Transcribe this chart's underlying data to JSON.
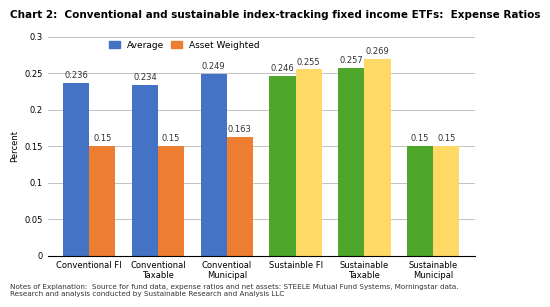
{
  "title": "Chart 2:  Conventional and sustainable index-tracking fixed income ETFs:  Expense Ratios",
  "categories": [
    "Conventional FI",
    "Conventional\nTaxable",
    "Conventioal\nMunicipal",
    "Sustainble FI",
    "Sustainable\nTaxable",
    "Sustainable\nMunicipal"
  ],
  "average_values": [
    0.236,
    0.234,
    0.249,
    0.246,
    0.257,
    0.15
  ],
  "asset_weighted_values": [
    0.15,
    0.15,
    0.163,
    0.255,
    0.269,
    0.15
  ],
  "average_colors": [
    "#4472C4",
    "#4472C4",
    "#4472C4",
    "#4EA72A",
    "#4EA72A",
    "#4EA72A"
  ],
  "asset_weighted_colors": [
    "#ED7D31",
    "#ED7D31",
    "#ED7D31",
    "#FFD966",
    "#FFD966",
    "#FFD966"
  ],
  "legend_avg_color": "#4472C4",
  "legend_aw_color": "#ED7D31",
  "ylabel": "Percent",
  "ylim": [
    0,
    0.3
  ],
  "yticks": [
    0,
    0.05,
    0.1,
    0.15,
    0.2,
    0.25,
    0.3
  ],
  "ytick_labels": [
    "0",
    "0.05",
    "0.1",
    "0.15",
    "0.2",
    "0.25",
    "0.3"
  ],
  "footnote": "Notes of Explanation:  Source for fund data, expense ratios and net assets: STEELE Mutual Fund Systems, Morningstar data.\nResearch and analysis conducted by Sustainable Research and Analysis LLC",
  "bar_width": 0.38,
  "title_fontsize": 7.5,
  "axis_fontsize": 6,
  "label_fontsize": 6,
  "footnote_fontsize": 5.2,
  "legend_fontsize": 6.5
}
